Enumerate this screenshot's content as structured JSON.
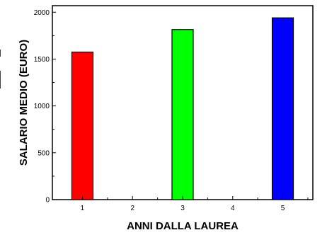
{
  "chart_data": {
    "type": "bar",
    "title": "",
    "xlabel": "ANNI DALLA LAUREA",
    "ylabel": "SALARIO MEDIO (EURO)",
    "categories": [
      "1",
      "2",
      "3",
      "4",
      "5"
    ],
    "x_ticks": [
      1,
      2,
      3,
      4,
      5
    ],
    "xlim": [
      0.4,
      5.6
    ],
    "ylim": [
      0,
      2070
    ],
    "y_ticks": [
      0,
      500,
      1000,
      1500,
      2000
    ],
    "bars": [
      {
        "x": 1,
        "value": 1575,
        "color": "#ff0000"
      },
      {
        "x": 3,
        "value": 1815,
        "color": "#00ff00"
      },
      {
        "x": 5,
        "value": 1940,
        "color": "#0000ff"
      }
    ],
    "grid": false,
    "legend": "none"
  }
}
